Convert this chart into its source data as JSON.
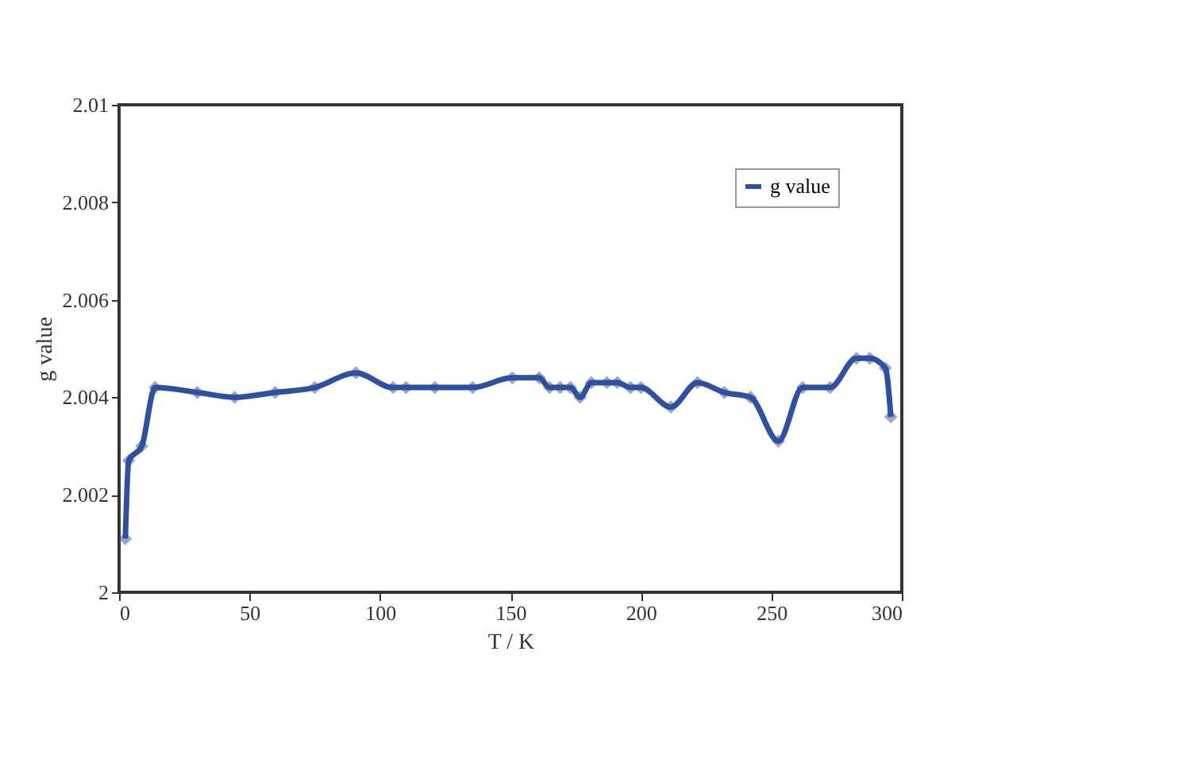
{
  "chart_data": {
    "type": "line",
    "xlabel": "T / K",
    "ylabel": "g value",
    "xlim": [
      0,
      300
    ],
    "xticks": [
      0,
      50,
      100,
      150,
      200,
      250,
      300
    ],
    "ylim": [
      2,
      2.01
    ],
    "yticks": [
      2,
      2.002,
      2.004,
      2.006,
      2.008,
      2.01
    ],
    "grid": false,
    "legend": "top right",
    "marker": "diamond",
    "line_style": "solid",
    "series": [
      {
        "name": "g value",
        "color": "#2f4f9f",
        "x": [
          2.4,
          3.7,
          8.7,
          13.8,
          30,
          44.3,
          59.8,
          75,
          90.8,
          105,
          110,
          121,
          135.5,
          150.7,
          161,
          165,
          169,
          173,
          176.7,
          181,
          187,
          191,
          196,
          200,
          211.5,
          221.7,
          232,
          242,
          252.7,
          262,
          272.5,
          282.6,
          287.7,
          293.7,
          295.8
        ],
        "values": [
          2.0011,
          2.0027,
          2.003,
          2.0042,
          2.0041,
          2.004,
          2.0041,
          2.0042,
          2.0045,
          2.0042,
          2.0042,
          2.0042,
          2.0042,
          2.0044,
          2.0044,
          2.0042,
          2.0042,
          2.0042,
          2.004,
          2.0043,
          2.0043,
          2.0043,
          2.0042,
          2.0042,
          2.0038,
          2.0043,
          2.0041,
          2.004,
          2.0031,
          2.0042,
          2.0042,
          2.0048,
          2.0048,
          2.0046,
          2.0036
        ]
      }
    ]
  }
}
